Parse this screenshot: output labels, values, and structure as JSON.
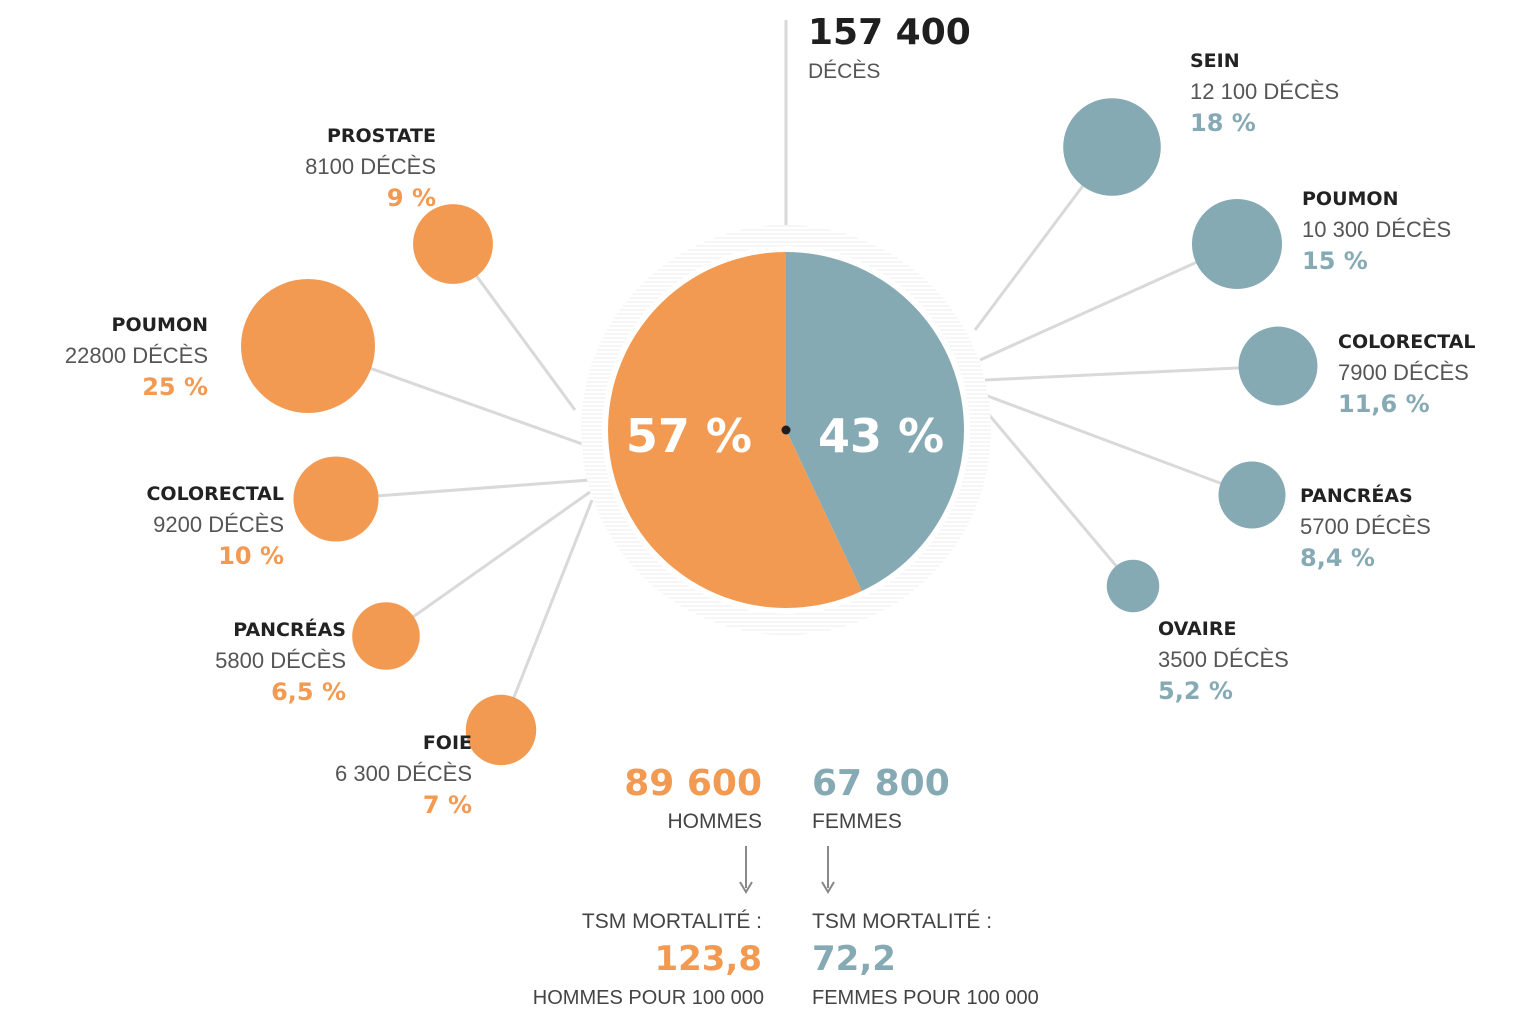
{
  "chart_data": {
    "type": "pie",
    "total": {
      "value": "157 400",
      "label": "DÉCÈS"
    },
    "colors": {
      "hommes": "#f39a52",
      "femmes": "#86aab4",
      "line": "#d9d9d9"
    },
    "split": [
      {
        "label": "57 %",
        "value": 57
      },
      {
        "label": "43 %",
        "value": 43
      }
    ],
    "men_cancers": [
      {
        "name": "PROSTATE",
        "deaths": "8100 DÉCÈS",
        "deaths_value": 8100,
        "pct": "9 %"
      },
      {
        "name": "POUMON",
        "deaths": "22800 DÉCÈS",
        "deaths_value": 22800,
        "pct": "25 %"
      },
      {
        "name": "COLORECTAL",
        "deaths": "9200 DÉCÈS",
        "deaths_value": 9200,
        "pct": "10 %"
      },
      {
        "name": "PANCRÉAS",
        "deaths": "5800 DÉCÈS",
        "deaths_value": 5800,
        "pct": "6,5 %"
      },
      {
        "name": "FOIE",
        "deaths": "6 300 DÉCÈS",
        "deaths_value": 6300,
        "pct": "7 %"
      }
    ],
    "women_cancers": [
      {
        "name": "SEIN",
        "deaths": "12 100 DÉCÈS",
        "deaths_value": 12100,
        "pct": "18 %"
      },
      {
        "name": "POUMON",
        "deaths": "10 300 DÉCÈS",
        "deaths_value": 10300,
        "pct": "15 %"
      },
      {
        "name": "COLORECTAL",
        "deaths": "7900 DÉCÈS",
        "deaths_value": 7900,
        "pct": "11,6 %"
      },
      {
        "name": "PANCRÉAS",
        "deaths": "5700 DÉCÈS",
        "deaths_value": 5700,
        "pct": "8,4 %"
      },
      {
        "name": "OVAIRE",
        "deaths": "3500 DÉCÈS",
        "deaths_value": 3500,
        "pct": "5,2 %"
      }
    ],
    "summary": {
      "hommes": {
        "value": "89 600",
        "label": "HOMMES",
        "tsm_label": "TSM MORTALITÉ :",
        "tsm_value": "123,8",
        "tsm_unit": "HOMMES POUR 100 000"
      },
      "femmes": {
        "value": "67 800",
        "label": "FEMMES",
        "tsm_label": "TSM MORTALITÉ :",
        "tsm_value": "72,2",
        "tsm_unit": "FEMMES POUR 100 000"
      }
    }
  }
}
